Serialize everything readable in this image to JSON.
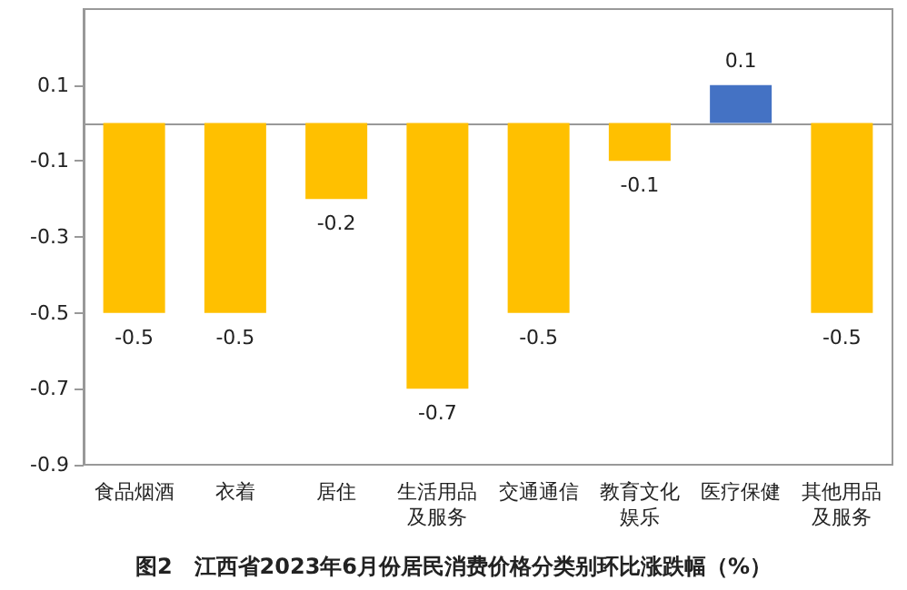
{
  "chart_data": {
    "type": "bar",
    "title": "图2　江西省2023年6月份居民消费价格分类别环比涨跌幅（%）",
    "categories": [
      "食品烟酒",
      "衣着",
      "居住",
      "生活用品及服务",
      "交通通信",
      "教育文化娱乐",
      "医疗保健",
      "其他用品及服务"
    ],
    "values": [
      -0.5,
      -0.5,
      -0.2,
      -0.7,
      -0.5,
      -0.1,
      0.1,
      -0.5
    ],
    "colors": [
      "#ffc000",
      "#ffc000",
      "#ffc000",
      "#ffc000",
      "#ffc000",
      "#ffc000",
      "#4472c4",
      "#ffc000"
    ],
    "ylim": [
      -0.9,
      0.3
    ],
    "yticks": [
      -0.9,
      -0.7,
      -0.5,
      -0.3,
      -0.1,
      0.1
    ],
    "grid": false,
    "data_labels": true
  }
}
